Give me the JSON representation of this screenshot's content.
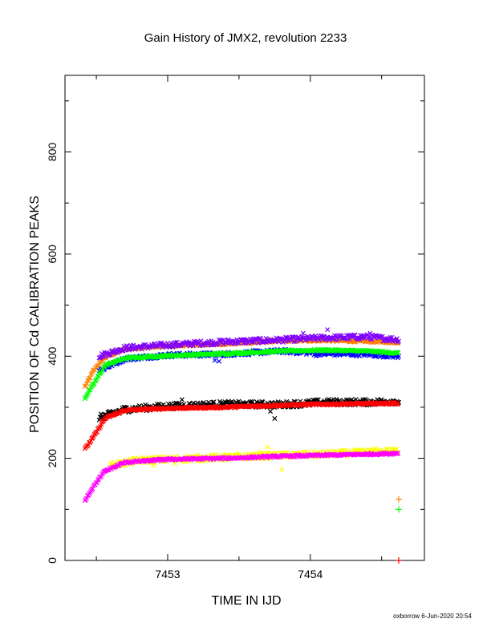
{
  "chart_data": {
    "type": "scatter",
    "title": "Gain History of JMX2, revolution 2233",
    "xlabel": "TIME IN IJD",
    "ylabel": "POSITION OF Cd CALIBRATION PEAKS",
    "footer": "oxborrow  6-Jun-2020 20:54",
    "xlim": [
      7452.28,
      7454.8
    ],
    "ylim": [
      0,
      950
    ],
    "x_ticks": [
      {
        "value": 7453,
        "label": "7453"
      },
      {
        "value": 7454,
        "label": "7454"
      }
    ],
    "y_ticks": [
      {
        "value": 0,
        "label": "0"
      },
      {
        "value": 200,
        "label": "200"
      },
      {
        "value": 400,
        "label": "400"
      },
      {
        "value": 600,
        "label": "600"
      },
      {
        "value": 800,
        "label": "800"
      }
    ],
    "grid": false,
    "x_start": 7452.42,
    "x_end": 7454.62,
    "series": [
      {
        "color": "#ff8000",
        "marker": "x",
        "knots": [
          [
            7452.42,
            340
          ],
          [
            7452.48,
            372
          ],
          [
            7452.56,
            398
          ],
          [
            7452.7,
            414
          ],
          [
            7453.0,
            420
          ],
          [
            7453.4,
            424
          ],
          [
            7453.8,
            430
          ],
          [
            7454.1,
            431
          ],
          [
            7454.4,
            429
          ],
          [
            7454.62,
            427
          ]
        ],
        "scatter": 2,
        "outliers": []
      },
      {
        "color": "#8000ff",
        "marker": "x",
        "knots": [
          [
            7452.52,
            400
          ],
          [
            7452.7,
            416
          ],
          [
            7453.0,
            422
          ],
          [
            7453.4,
            428
          ],
          [
            7453.8,
            432
          ],
          [
            7454.1,
            436
          ],
          [
            7454.4,
            438
          ],
          [
            7454.62,
            432
          ]
        ],
        "scatter": 5,
        "outliers": [
          [
            7453.95,
            445
          ],
          [
            7454.12,
            452
          ],
          [
            7454.42,
            445
          ]
        ]
      },
      {
        "color": "#0000ff",
        "marker": "x",
        "knots": [
          [
            7452.52,
            372
          ],
          [
            7452.7,
            395
          ],
          [
            7453.0,
            402
          ],
          [
            7453.4,
            404
          ],
          [
            7453.8,
            410
          ],
          [
            7454.1,
            405
          ],
          [
            7454.4,
            404
          ],
          [
            7454.62,
            400
          ]
        ],
        "scatter": 4,
        "outliers": [
          [
            7453.33,
            392
          ],
          [
            7453.36,
            390
          ],
          [
            7454.04,
            400
          ]
        ]
      },
      {
        "color": "#00ff00",
        "marker": "x",
        "knots": [
          [
            7452.42,
            318
          ],
          [
            7452.48,
            345
          ],
          [
            7452.56,
            382
          ],
          [
            7452.7,
            396
          ],
          [
            7453.0,
            401
          ],
          [
            7453.4,
            405
          ],
          [
            7453.8,
            410
          ],
          [
            7454.1,
            412
          ],
          [
            7454.4,
            410
          ],
          [
            7454.62,
            406
          ]
        ],
        "scatter": 2,
        "outliers": []
      },
      {
        "color": "#000000",
        "marker": "x",
        "knots": [
          [
            7452.52,
            280
          ],
          [
            7452.7,
            296
          ],
          [
            7453.0,
            302
          ],
          [
            7453.4,
            306
          ],
          [
            7453.8,
            305
          ],
          [
            7454.1,
            310
          ],
          [
            7454.4,
            310
          ],
          [
            7454.62,
            312
          ]
        ],
        "scatter": 6,
        "outliers": [
          [
            7453.75,
            278
          ],
          [
            7453.72,
            292
          ],
          [
            7453.1,
            315
          ]
        ]
      },
      {
        "color": "#ff0000",
        "marker": "x",
        "knots": [
          [
            7452.42,
            218
          ],
          [
            7452.48,
            242
          ],
          [
            7452.56,
            278
          ],
          [
            7452.7,
            294
          ],
          [
            7453.0,
            298
          ],
          [
            7453.4,
            300
          ],
          [
            7453.8,
            304
          ],
          [
            7454.1,
            306
          ],
          [
            7454.4,
            307
          ],
          [
            7454.62,
            308
          ]
        ],
        "scatter": 2,
        "outliers": []
      },
      {
        "color": "#ffff00",
        "marker": "x",
        "knots": [
          [
            7452.6,
            186
          ],
          [
            7452.8,
            196
          ],
          [
            7453.0,
            198
          ],
          [
            7453.4,
            202
          ],
          [
            7453.8,
            206
          ],
          [
            7454.1,
            208
          ],
          [
            7454.4,
            212
          ],
          [
            7454.62,
            214
          ]
        ],
        "scatter": 6,
        "outliers": [
          [
            7452.9,
            186
          ],
          [
            7453.05,
            190
          ],
          [
            7453.8,
            178
          ],
          [
            7453.65,
            212
          ],
          [
            7453.7,
            222
          ]
        ]
      },
      {
        "color": "#ff00ff",
        "marker": "x",
        "knots": [
          [
            7452.42,
            118
          ],
          [
            7452.48,
            145
          ],
          [
            7452.56,
            175
          ],
          [
            7452.7,
            192
          ],
          [
            7453.0,
            198
          ],
          [
            7453.4,
            200
          ],
          [
            7453.8,
            204
          ],
          [
            7454.1,
            206
          ],
          [
            7454.4,
            208
          ],
          [
            7454.62,
            210
          ]
        ],
        "scatter": 2,
        "outliers": []
      }
    ],
    "extra_markers": [
      {
        "x": 7454.62,
        "y": 120,
        "color": "#ff8000",
        "marker": "+"
      },
      {
        "x": 7454.62,
        "y": 100,
        "color": "#00ff00",
        "marker": "+"
      },
      {
        "x": 7454.62,
        "y": 0,
        "color": "#ff0000",
        "marker": "+"
      }
    ]
  }
}
